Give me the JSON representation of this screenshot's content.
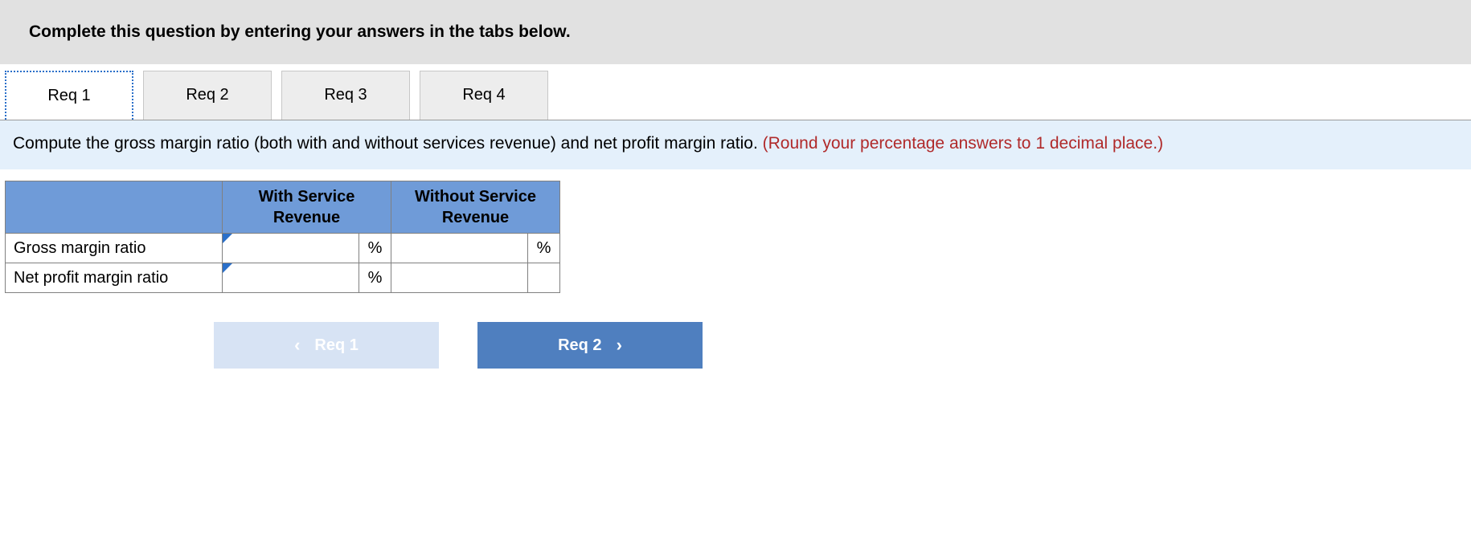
{
  "instruction": "Complete this question by entering your answers in the tabs below.",
  "tabs": [
    {
      "label": "Req 1",
      "active": true
    },
    {
      "label": "Req 2",
      "active": false
    },
    {
      "label": "Req 3",
      "active": false
    },
    {
      "label": "Req 4",
      "active": false
    }
  ],
  "question": {
    "text": "Compute the gross margin ratio (both with and without services revenue) and net profit margin ratio. ",
    "note": "(Round your percentage answers to 1 decimal place.)"
  },
  "table": {
    "columns": [
      "With Service Revenue",
      "Without Service Revenue"
    ],
    "rows": [
      {
        "label": "Gross margin ratio",
        "cells": [
          {
            "value": "",
            "unit": "%",
            "editable": true,
            "flagged": true
          },
          {
            "value": "",
            "unit": "%",
            "editable": true,
            "flagged": false
          }
        ]
      },
      {
        "label": "Net profit margin ratio",
        "cells": [
          {
            "value": "",
            "unit": "%",
            "editable": true,
            "flagged": true
          },
          {
            "value": "",
            "unit": "",
            "editable": false,
            "flagged": false
          }
        ]
      }
    ],
    "header_bg": "#6f9bd8",
    "border_color": "#808080"
  },
  "nav": {
    "prev": {
      "label": "Req 1",
      "enabled": false
    },
    "next": {
      "label": "Req 2",
      "enabled": true
    }
  },
  "colors": {
    "instruction_bg": "#e1e1e1",
    "panel_bg": "#e4f0fb",
    "note_color": "#b02a2a",
    "tab_active_border": "#2a6fc9",
    "nav_prev_bg": "#d7e3f4",
    "nav_next_bg": "#4f7fbf"
  }
}
